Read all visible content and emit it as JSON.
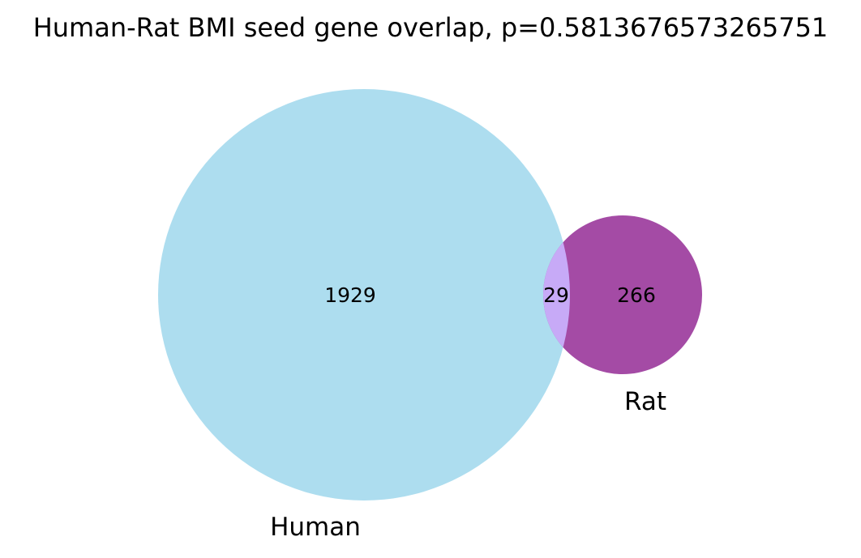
{
  "chart_data": {
    "type": "venn",
    "title": "Human-Rat BMI seed gene overlap, p=0.5813676573265751",
    "sets": [
      {
        "name": "Human",
        "label": "Human",
        "only_count": 1929,
        "only_label": "1929",
        "color": "#ADDDEF"
      },
      {
        "name": "Rat",
        "label": "Rat",
        "only_count": 266,
        "only_label": "266",
        "color": "#A44BA5"
      }
    ],
    "intersection": {
      "count": 29,
      "label": "29",
      "color": "#C7AAF7"
    },
    "p_value": 0.5813676573265751
  }
}
